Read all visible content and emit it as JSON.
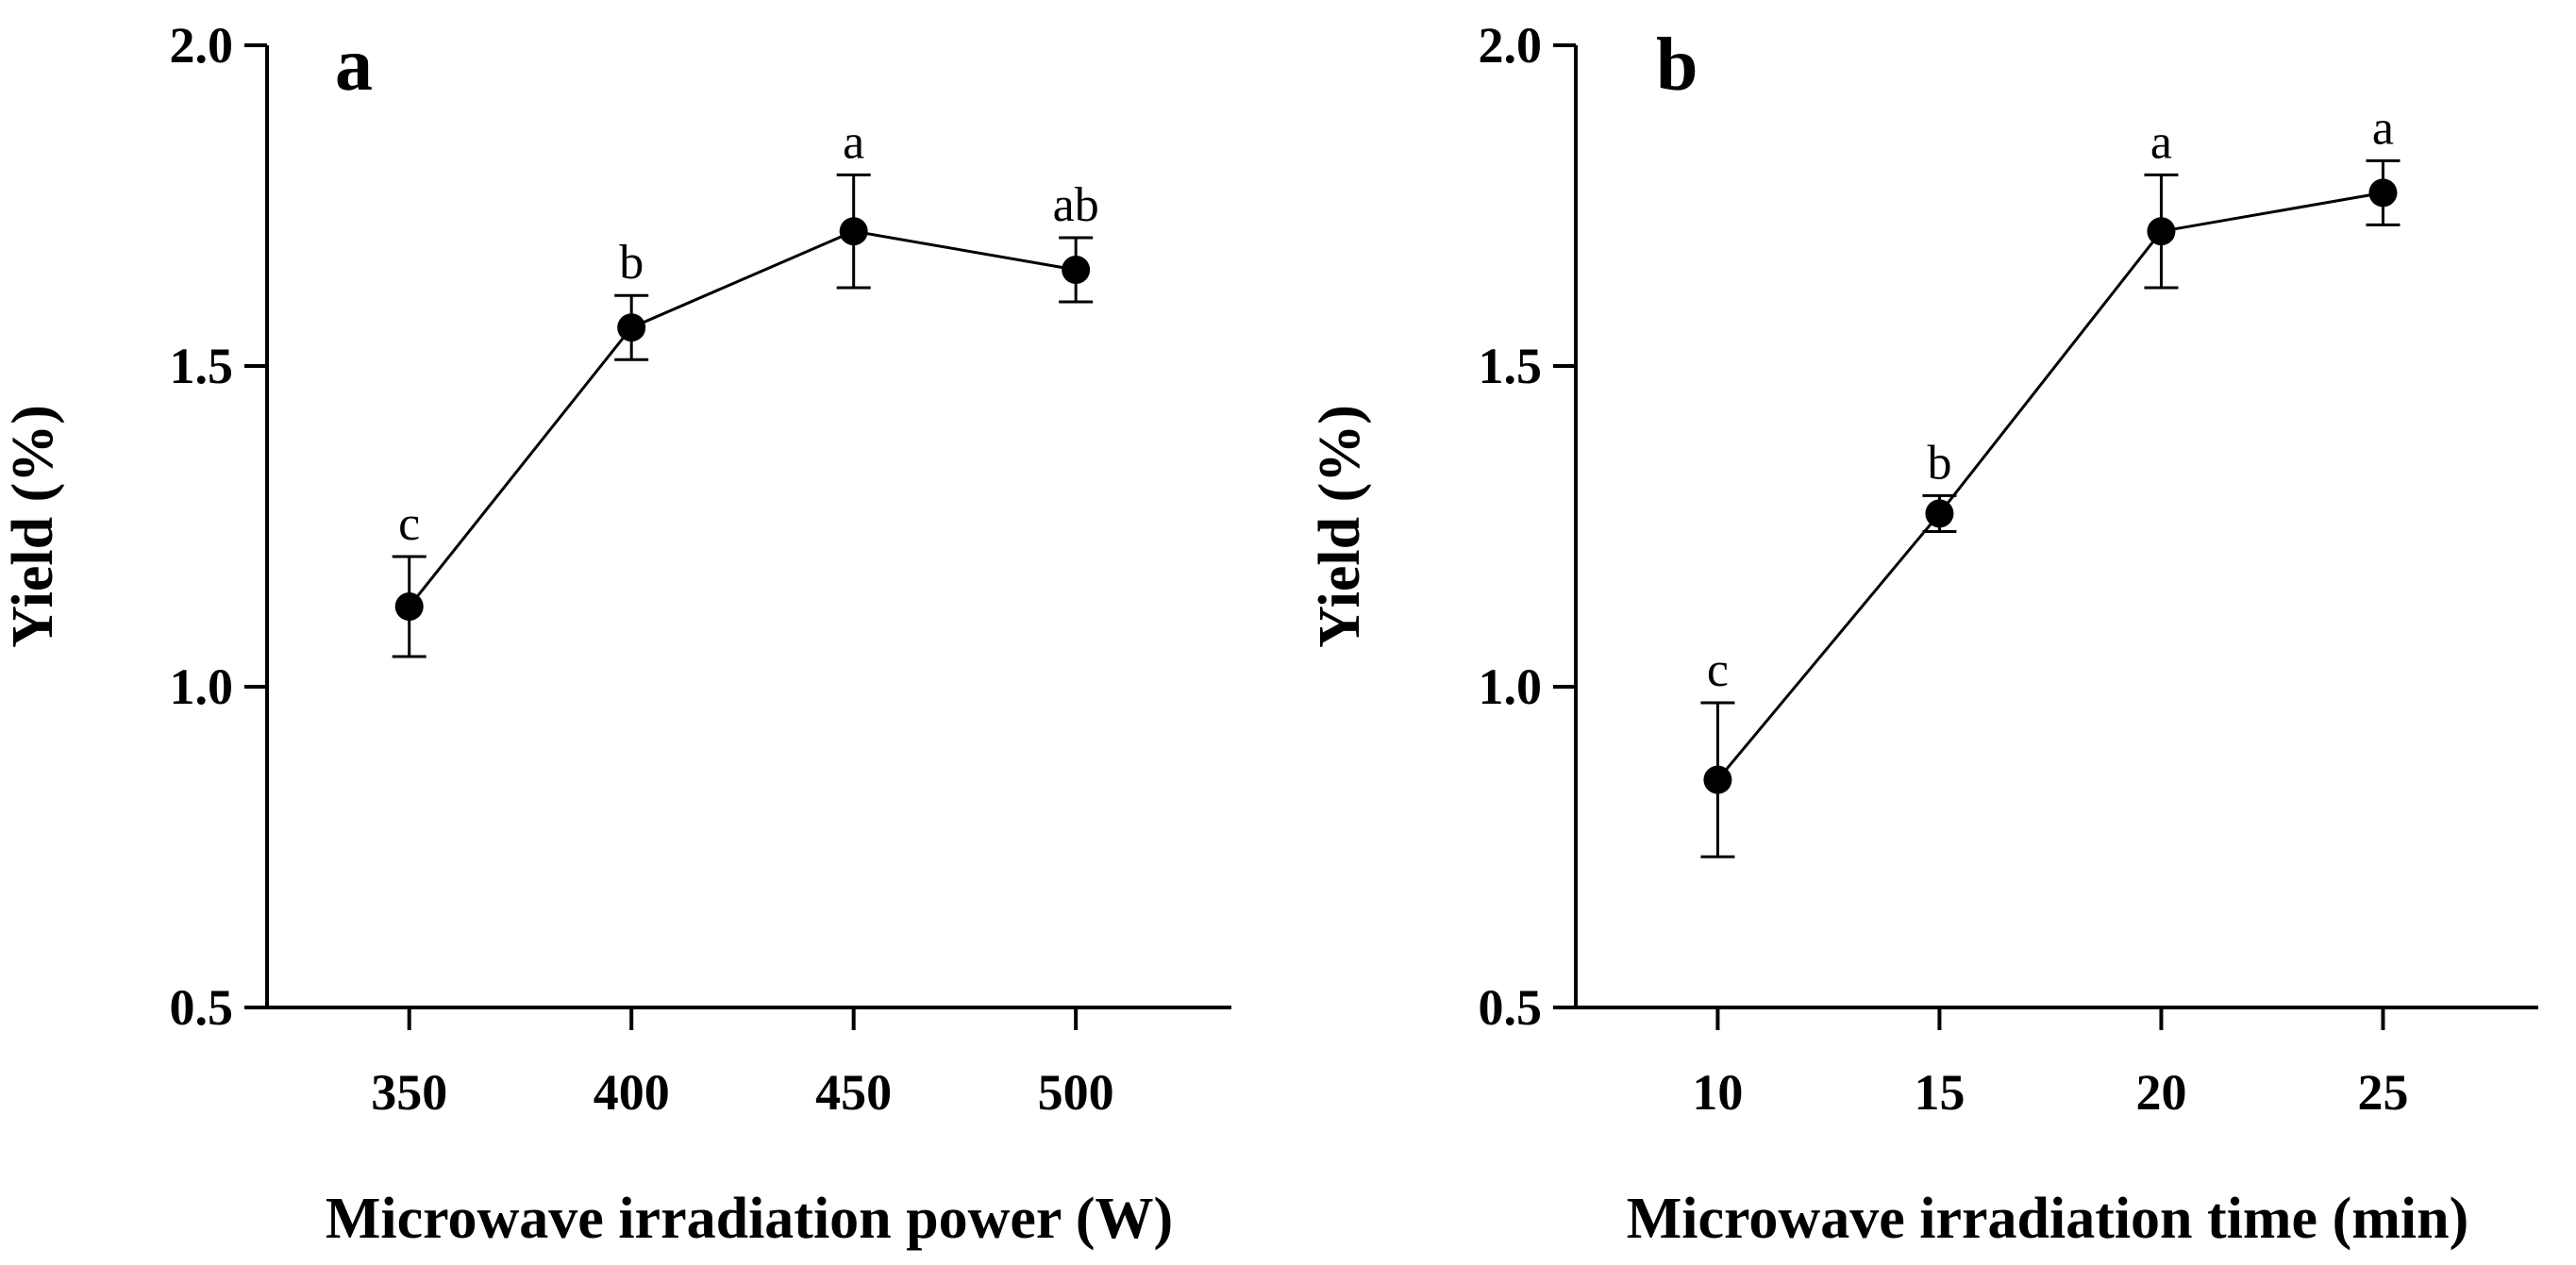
{
  "chart_data": [
    {
      "type": "line",
      "panel": "a",
      "x": [
        350,
        400,
        450,
        500
      ],
      "values": [
        1.125,
        1.56,
        1.71,
        1.65
      ],
      "errors": [
        0.078,
        0.05,
        0.088,
        0.05
      ],
      "significance": [
        "c",
        "b",
        "a",
        "ab"
      ],
      "xlabel": "Microwave irradiation power (W)",
      "ylabel": "Yield (%)",
      "xticks": [
        "350",
        "400",
        "450",
        "500"
      ],
      "yticks": [
        "0.5",
        "1.0",
        "1.5",
        "2.0"
      ],
      "ylim": [
        0.5,
        2.0
      ],
      "xlim": [
        318,
        535
      ],
      "grid": false
    },
    {
      "type": "line",
      "panel": "b",
      "x": [
        10,
        15,
        20,
        25
      ],
      "values": [
        0.855,
        1.27,
        1.71,
        1.77
      ],
      "errors": [
        0.12,
        0.028,
        0.088,
        0.05
      ],
      "significance": [
        "c",
        "b",
        "a",
        "a"
      ],
      "xlabel": "Microwave irradiation time (min)",
      "ylabel": "Yield (%)",
      "xticks": [
        "10",
        "15",
        "20",
        "25"
      ],
      "yticks": [
        "0.5",
        "1.0",
        "1.5",
        "2.0"
      ],
      "ylim": [
        0.5,
        2.0
      ],
      "xlim": [
        6.8,
        28.5
      ],
      "grid": false
    }
  ]
}
